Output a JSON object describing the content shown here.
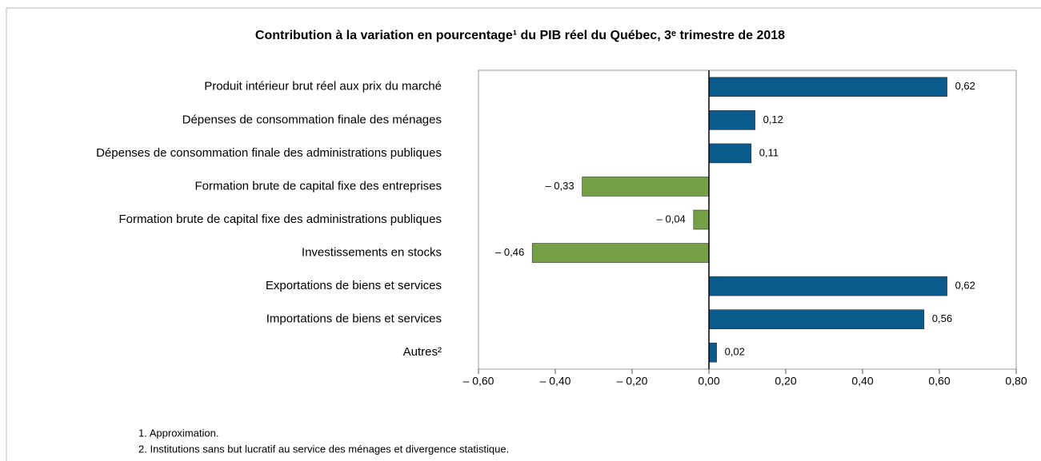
{
  "chart_data": {
    "type": "hbar",
    "title": "Contribution à la variation en pourcentage¹ du PIB réel du Québec, 3ᵉ trimestre de 2018",
    "categories": [
      "Produit intérieur brut réel aux prix du marché",
      "Dépenses de consommation finale des ménages",
      "Dépenses de consommation finale des administrations publiques",
      "Formation brute de capital fixe des entreprises",
      "Formation brute de capital fixe des administrations publiques",
      "Investissements en stocks",
      "Exportations de biens et services",
      "Importations de biens et services",
      "Autres²"
    ],
    "values": [
      0.62,
      0.12,
      0.11,
      -0.33,
      -0.04,
      -0.46,
      0.62,
      0.56,
      0.02
    ],
    "value_labels": [
      "0,62",
      "0,12",
      "0,11",
      "– 0,33",
      "– 0,04",
      "– 0,46",
      "0,62",
      "0,56",
      "0,02"
    ],
    "colors": [
      "#0b5a8c",
      "#0b5a8c",
      "#0b5a8c",
      "#76a046",
      "#76a046",
      "#76a046",
      "#0b5a8c",
      "#0b5a8c",
      "#0b5a8c"
    ],
    "xlim": [
      -0.6,
      0.8
    ],
    "xticks": [
      {
        "value": -0.6,
        "label": "– 0,60"
      },
      {
        "value": -0.4,
        "label": "– 0,40"
      },
      {
        "value": -0.2,
        "label": "– 0,20"
      },
      {
        "value": 0,
        "label": "0,00"
      },
      {
        "value": 0.2,
        "label": "0,20"
      },
      {
        "value": 0.4,
        "label": "0,40"
      },
      {
        "value": 0.6,
        "label": "0,60"
      },
      {
        "value": 0.8,
        "label": "0,80"
      }
    ],
    "footnotes": [
      "1. Approximation.",
      "2. Institutions sans but lucratif au service des ménages et divergence statistique."
    ]
  }
}
